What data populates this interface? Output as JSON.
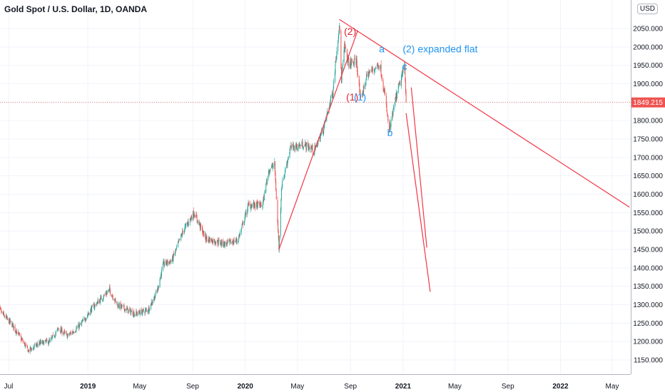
{
  "header": {
    "title": "Gold Spot / U.S. Dollar, 1D, OANDA",
    "currency_badge": "USD"
  },
  "colors": {
    "up": "#26a69a",
    "down": "#ef5350",
    "drawing": "#f23645",
    "label_red": "#e0242f",
    "label_blue": "#2196f3",
    "grid": "#f0f3fa"
  },
  "chart_data": {
    "type": "candlestick",
    "title": "Gold Spot / U.S. Dollar, 1D, OANDA",
    "ylim": [
      1110,
      2085
    ],
    "y_ticks": [
      1150,
      1200,
      1250,
      1300,
      1350,
      1400,
      1450,
      1500,
      1550,
      1600,
      1650,
      1700,
      1750,
      1800,
      1850,
      1900,
      1950,
      2000,
      2050
    ],
    "y_tick_labels": [
      "1150.000",
      "1200.000",
      "1250.000",
      "1300.000",
      "1350.000",
      "1400.000",
      "1450.000",
      "1500.000",
      "1550.000",
      "1600.000",
      "1650.000",
      "1700.000",
      "1750.000",
      "1800.000",
      "1850.000",
      "1900.000",
      "1950.000",
      "2000.000",
      "2050.000"
    ],
    "x_ticks": [
      {
        "date": "2018-07-01",
        "label": "Jul"
      },
      {
        "date": "2019-01-01",
        "label": "2019"
      },
      {
        "date": "2019-05-01",
        "label": "May"
      },
      {
        "date": "2019-09-01",
        "label": "Sep"
      },
      {
        "date": "2020-01-01",
        "label": "2020"
      },
      {
        "date": "2020-05-01",
        "label": "May"
      },
      {
        "date": "2020-09-01",
        "label": "Sep"
      },
      {
        "date": "2021-01-01",
        "label": "2021"
      },
      {
        "date": "2021-05-01",
        "label": "May"
      },
      {
        "date": "2021-09-01",
        "label": "Sep"
      },
      {
        "date": "2022-01-01",
        "label": "2022"
      },
      {
        "date": "2022-05-01",
        "label": "May"
      }
    ],
    "price_path": [
      {
        "date": "2018-06-01",
        "price": 1300
      },
      {
        "date": "2018-06-20",
        "price": 1270
      },
      {
        "date": "2018-07-10",
        "price": 1245
      },
      {
        "date": "2018-08-16",
        "price": 1175
      },
      {
        "date": "2018-09-10",
        "price": 1195
      },
      {
        "date": "2018-10-05",
        "price": 1200
      },
      {
        "date": "2018-10-25",
        "price": 1235
      },
      {
        "date": "2018-11-15",
        "price": 1215
      },
      {
        "date": "2018-12-15",
        "price": 1245
      },
      {
        "date": "2019-01-10",
        "price": 1290
      },
      {
        "date": "2019-02-20",
        "price": 1340
      },
      {
        "date": "2019-03-10",
        "price": 1300
      },
      {
        "date": "2019-04-20",
        "price": 1275
      },
      {
        "date": "2019-05-20",
        "price": 1285
      },
      {
        "date": "2019-06-10",
        "price": 1335
      },
      {
        "date": "2019-06-25",
        "price": 1410
      },
      {
        "date": "2019-07-15",
        "price": 1420
      },
      {
        "date": "2019-08-10",
        "price": 1500
      },
      {
        "date": "2019-09-04",
        "price": 1550
      },
      {
        "date": "2019-10-01",
        "price": 1480
      },
      {
        "date": "2019-11-15",
        "price": 1465
      },
      {
        "date": "2019-12-15",
        "price": 1475
      },
      {
        "date": "2020-01-08",
        "price": 1570
      },
      {
        "date": "2020-02-10",
        "price": 1570
      },
      {
        "date": "2020-02-24",
        "price": 1665
      },
      {
        "date": "2020-03-09",
        "price": 1680
      },
      {
        "date": "2020-03-19",
        "price": 1455
      },
      {
        "date": "2020-03-25",
        "price": 1620
      },
      {
        "date": "2020-04-14",
        "price": 1725
      },
      {
        "date": "2020-05-15",
        "price": 1735
      },
      {
        "date": "2020-06-10",
        "price": 1720
      },
      {
        "date": "2020-07-01",
        "price": 1780
      },
      {
        "date": "2020-07-22",
        "price": 1880
      },
      {
        "date": "2020-08-06",
        "price": 2065
      },
      {
        "date": "2020-08-11",
        "price": 1910
      },
      {
        "date": "2020-08-18",
        "price": 2000
      },
      {
        "date": "2020-08-28",
        "price": 1955
      },
      {
        "date": "2020-09-15",
        "price": 1960
      },
      {
        "date": "2020-09-24",
        "price": 1855
      },
      {
        "date": "2020-10-10",
        "price": 1925
      },
      {
        "date": "2020-11-08",
        "price": 1955
      },
      {
        "date": "2020-11-20",
        "price": 1865
      },
      {
        "date": "2020-11-30",
        "price": 1770
      },
      {
        "date": "2020-12-15",
        "price": 1860
      },
      {
        "date": "2021-01-05",
        "price": 1950
      },
      {
        "date": "2021-01-08",
        "price": 1849
      }
    ],
    "last_price": 1849.215,
    "last_price_label": "1849.215",
    "trendlines": [
      {
        "from": {
          "date": "2020-08-06",
          "price": 2075
        },
        "to": {
          "date": "2022-06-10",
          "price": 1565
        }
      },
      {
        "from": {
          "date": "2020-03-19",
          "price": 1450
        },
        "to": {
          "date": "2020-09-18",
          "price": 2045
        }
      },
      {
        "from": {
          "date": "2021-01-08",
          "price": 1820
        },
        "to": {
          "date": "2021-03-05",
          "price": 1335
        }
      },
      {
        "from": {
          "date": "2021-01-20",
          "price": 1890
        },
        "to": {
          "date": "2021-02-25",
          "price": 1455
        }
      }
    ],
    "annotations": [
      {
        "text": "(2)",
        "date": "2020-08-17",
        "price": 2033,
        "color": "red"
      },
      {
        "text": "(1)",
        "date": "2020-08-22",
        "price": 1855,
        "color": "red"
      },
      {
        "text": "(1)",
        "date": "2020-09-09",
        "price": 1855,
        "color": "blue"
      },
      {
        "text": "a",
        "date": "2020-11-06",
        "price": 1985,
        "color": "blue"
      },
      {
        "text": "(2) expanded flat",
        "date": "2020-12-31",
        "price": 1985,
        "color": "blue"
      },
      {
        "text": "c",
        "date": "2020-12-30",
        "price": 1938,
        "color": "blue"
      },
      {
        "text": "b",
        "date": "2020-11-25",
        "price": 1758,
        "color": "blue"
      }
    ]
  }
}
